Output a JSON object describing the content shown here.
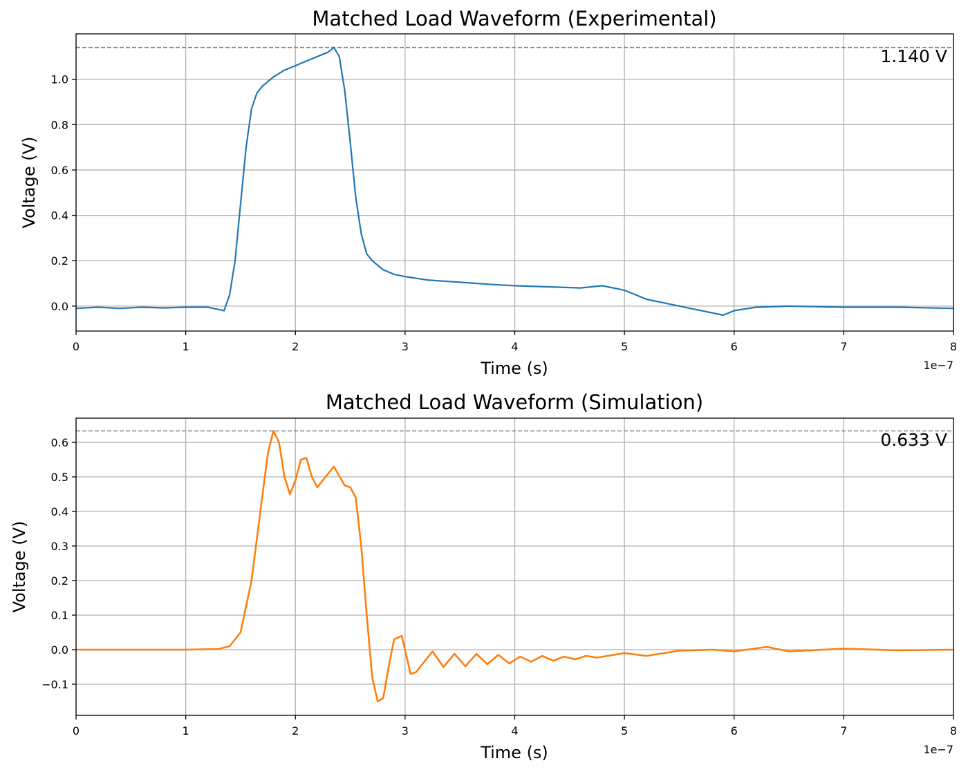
{
  "chart_data": [
    {
      "type": "line",
      "title": "Matched Load Waveform (Experimental)",
      "xlabel": "Time (s)",
      "ylabel": "Voltage (V)",
      "x_offset_label": "1e−7",
      "xlim": [
        0,
        8e-07
      ],
      "ylim": [
        -0.11,
        1.2
      ],
      "xticks": [
        0,
        1,
        2,
        3,
        4,
        5,
        6,
        7,
        8
      ],
      "yticks": [
        0.0,
        0.2,
        0.4,
        0.6,
        0.8,
        1.0
      ],
      "ytick_labels": [
        "0.0",
        "0.2",
        "0.4",
        "0.6",
        "0.8",
        "1.0"
      ],
      "grid": true,
      "peak_label": "1.140 V",
      "peak_value": 1.14,
      "series": [
        {
          "color": "#1f77b4",
          "x": [
            0,
            2e-08,
            4e-08,
            6e-08,
            8e-08,
            1e-07,
            1.2e-07,
            1.3e-07,
            1.35e-07,
            1.4e-07,
            1.45e-07,
            1.5e-07,
            1.55e-07,
            1.6e-07,
            1.65e-07,
            1.7e-07,
            1.75e-07,
            1.8e-07,
            1.9e-07,
            2e-07,
            2.1e-07,
            2.2e-07,
            2.3e-07,
            2.35e-07,
            2.4e-07,
            2.45e-07,
            2.5e-07,
            2.55e-07,
            2.6e-07,
            2.65e-07,
            2.7e-07,
            2.8e-07,
            2.9e-07,
            3e-07,
            3.2e-07,
            3.5e-07,
            3.8e-07,
            4e-07,
            4.3e-07,
            4.6e-07,
            4.8e-07,
            5e-07,
            5.2e-07,
            5.4e-07,
            5.6e-07,
            5.8e-07,
            5.9e-07,
            6e-07,
            6.2e-07,
            6.5e-07,
            7e-07,
            7.5e-07,
            8e-07
          ],
          "y": [
            -0.01,
            -0.005,
            -0.01,
            -0.005,
            -0.008,
            -0.005,
            -0.005,
            -0.015,
            -0.02,
            0.05,
            0.2,
            0.45,
            0.7,
            0.87,
            0.94,
            0.97,
            0.99,
            1.01,
            1.04,
            1.06,
            1.08,
            1.1,
            1.12,
            1.14,
            1.1,
            0.95,
            0.72,
            0.48,
            0.32,
            0.23,
            0.2,
            0.16,
            0.14,
            0.13,
            0.115,
            0.105,
            0.095,
            0.09,
            0.085,
            0.08,
            0.09,
            0.07,
            0.03,
            0.01,
            -0.01,
            -0.03,
            -0.04,
            -0.02,
            -0.005,
            0,
            -0.005,
            -0.005,
            -0.01
          ]
        }
      ]
    },
    {
      "type": "line",
      "title": "Matched Load Waveform (Simulation)",
      "xlabel": "Time (s)",
      "ylabel": "Voltage (V)",
      "x_offset_label": "1e−7",
      "xlim": [
        0,
        8e-07
      ],
      "ylim": [
        -0.19,
        0.67
      ],
      "xticks": [
        0,
        1,
        2,
        3,
        4,
        5,
        6,
        7,
        8
      ],
      "yticks": [
        -0.1,
        0.0,
        0.1,
        0.2,
        0.3,
        0.4,
        0.5,
        0.6
      ],
      "ytick_labels": [
        "−0.1",
        "0.0",
        "0.1",
        "0.2",
        "0.3",
        "0.4",
        "0.5",
        "0.6"
      ],
      "grid": true,
      "peak_label": "0.633 V",
      "peak_value": 0.633,
      "series": [
        {
          "color": "#ff7f0e",
          "x": [
            0,
            1e-07,
            1.3e-07,
            1.4e-07,
            1.5e-07,
            1.6e-07,
            1.7e-07,
            1.75e-07,
            1.8e-07,
            1.85e-07,
            1.9e-07,
            1.95e-07,
            2e-07,
            2.05e-07,
            2.1e-07,
            2.15e-07,
            2.2e-07,
            2.25e-07,
            2.35e-07,
            2.45e-07,
            2.5e-07,
            2.55e-07,
            2.6e-07,
            2.65e-07,
            2.7e-07,
            2.75e-07,
            2.8e-07,
            2.85e-07,
            2.9e-07,
            2.97e-07,
            3.05e-07,
            3.1e-07,
            3.25e-07,
            3.35e-07,
            3.45e-07,
            3.55e-07,
            3.65e-07,
            3.75e-07,
            3.85e-07,
            3.95e-07,
            4.05e-07,
            4.15e-07,
            4.25e-07,
            4.35e-07,
            4.45e-07,
            4.55e-07,
            4.65e-07,
            4.75e-07,
            5e-07,
            5.2e-07,
            5.5e-07,
            5.8e-07,
            6e-07,
            6.3e-07,
            6.5e-07,
            7e-07,
            7.5e-07,
            8e-07
          ],
          "y": [
            0,
            0,
            0.002,
            0.01,
            0.05,
            0.2,
            0.45,
            0.57,
            0.633,
            0.6,
            0.5,
            0.45,
            0.49,
            0.55,
            0.555,
            0.5,
            0.47,
            0.49,
            0.53,
            0.475,
            0.47,
            0.44,
            0.3,
            0.1,
            -0.08,
            -0.15,
            -0.14,
            -0.05,
            0.03,
            0.04,
            -0.07,
            -0.065,
            -0.005,
            -0.05,
            -0.012,
            -0.048,
            -0.012,
            -0.042,
            -0.015,
            -0.04,
            -0.02,
            -0.035,
            -0.018,
            -0.032,
            -0.02,
            -0.028,
            -0.018,
            -0.023,
            -0.01,
            -0.018,
            -0.003,
            0.0,
            -0.005,
            0.008,
            -0.005,
            0.003,
            -0.002,
            0.0
          ]
        }
      ]
    }
  ]
}
